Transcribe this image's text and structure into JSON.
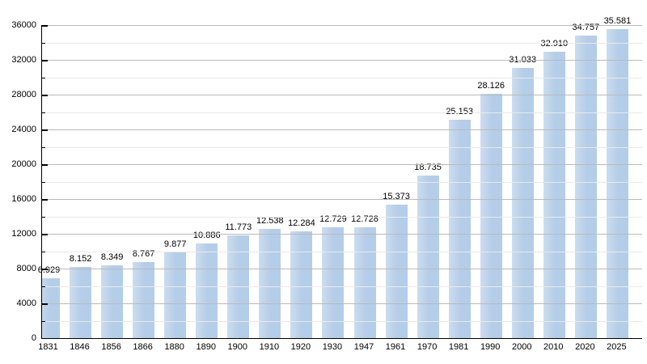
{
  "figure": {
    "background": "#ffffff"
  },
  "chart_data": {
    "type": "bar",
    "title": "",
    "xlabel": "",
    "ylabel": "",
    "categories": [
      "1831",
      "1846",
      "1856",
      "1866",
      "1880",
      "1890",
      "1900",
      "1910",
      "1920",
      "1930",
      "1947",
      "1961",
      "1970",
      "1981",
      "1990",
      "2000",
      "2010",
      "2020",
      "2025"
    ],
    "values": [
      6929,
      8152,
      8349,
      8767,
      9877,
      10886,
      11773,
      12538,
      12284,
      12729,
      12728,
      15373,
      18735,
      25153,
      28126,
      31033,
      32910,
      34757,
      35581
    ],
    "value_labels": [
      "6.929",
      "8.152",
      "8.349",
      "8.767",
      "9.877",
      "10.886",
      "11.773",
      "12.538",
      "12.284",
      "12.729",
      "12.728",
      "15.373",
      "18.735",
      "25.153",
      "28.126",
      "31.033",
      "32.910",
      "34.757",
      "35.581"
    ],
    "ylim": [
      0,
      36000
    ],
    "y_major_step": 4000,
    "y_minor_step": 2000,
    "y_tick_labels": [
      "0",
      "4000",
      "8000",
      "12000",
      "16000",
      "20000",
      "24000",
      "28000",
      "32000",
      "36000"
    ],
    "grid": "on",
    "legend": "none",
    "colors": {
      "bar_fill": "#b4cde8",
      "bar_fill_light": "#ccdcEF",
      "grid_major": "#bababa",
      "grid_minor": "#e9e9e9",
      "axis": "#000000",
      "text": "#000000"
    }
  }
}
